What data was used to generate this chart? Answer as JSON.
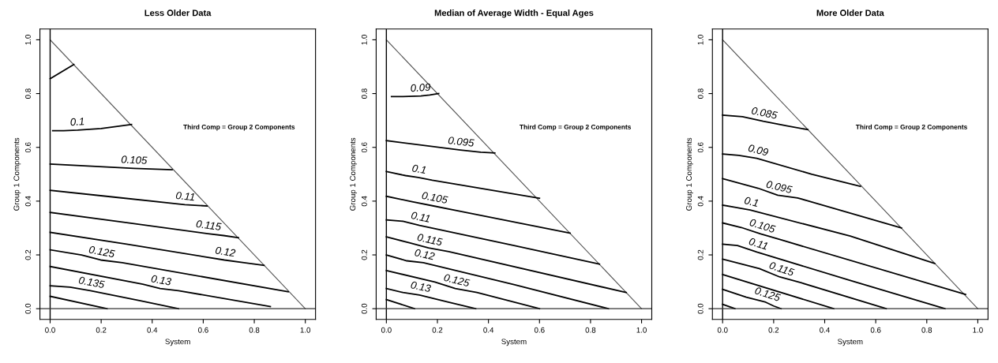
{
  "chart_data": [
    {
      "type": "line",
      "title": "Less Older Data",
      "xlabel": "System",
      "ylabel": "Group 1 Components",
      "annotations": [
        "Third Comp = Group 2 Components"
      ],
      "xlim": [
        -0.04,
        1.04
      ],
      "ylim": [
        -0.04,
        1.04
      ],
      "xticks": [
        {
          "value": 0,
          "label": "0.0"
        },
        {
          "value": 0.2,
          "label": "0.2"
        },
        {
          "value": 0.4,
          "label": "0.4"
        },
        {
          "value": 0.6,
          "label": "0.6"
        },
        {
          "value": 0.8,
          "label": "0.8"
        },
        {
          "value": 1,
          "label": "1.0"
        }
      ],
      "yticks": [
        {
          "value": 0,
          "label": "0.0"
        },
        {
          "value": 0.2,
          "label": "0.2"
        },
        {
          "value": 0.4,
          "label": "0.4"
        },
        {
          "value": 0.6,
          "label": "0.6"
        },
        {
          "value": 0.8,
          "label": "0.8"
        },
        {
          "value": 1,
          "label": "1.0"
        }
      ],
      "grid": false,
      "legend": false,
      "ref_lines": [
        {
          "axis": "x",
          "value": 0,
          "color": "#000000"
        },
        {
          "axis": "y",
          "value": 0,
          "color": "#333333"
        }
      ],
      "series": [
        {
          "color": "#555555",
          "x": [
            0,
            1
          ],
          "values": [
            1,
            0
          ]
        },
        {
          "color": "#000000",
          "x": [
            0,
            0.093
          ],
          "values": [
            0.855,
            0.908
          ]
        },
        {
          "name": "0.1",
          "color": "#000000",
          "x": [
            0.01,
            0.053,
            0.108,
            0.2,
            0.319
          ],
          "values": [
            0.662,
            0.662,
            0.664,
            0.67,
            0.685
          ]
        },
        {
          "name": "0.105",
          "color": "#000000",
          "x": [
            0,
            0.328,
            0.478
          ],
          "values": [
            0.538,
            0.522,
            0.517
          ]
        },
        {
          "name": "0.11",
          "color": "#000000",
          "x": [
            0,
            0.25,
            0.528,
            0.58,
            0.615
          ],
          "values": [
            0.44,
            0.415,
            0.387,
            0.384,
            0.382
          ]
        },
        {
          "name": "0.115",
          "color": "#000000",
          "x": [
            0,
            0.3,
            0.618,
            0.68,
            0.738
          ],
          "values": [
            0.358,
            0.32,
            0.279,
            0.272,
            0.264
          ]
        },
        {
          "name": "0.12",
          "color": "#000000",
          "x": [
            0,
            0.3,
            0.683,
            0.76,
            0.838
          ],
          "values": [
            0.284,
            0.24,
            0.181,
            0.171,
            0.161
          ]
        },
        {
          "name": "0.125",
          "color": "#000000",
          "x": [
            0,
            0.123,
            0.198,
            0.283,
            0.933
          ],
          "values": [
            0.219,
            0.2,
            0.181,
            0.171,
            0.063
          ]
        },
        {
          "name": "0.13",
          "color": "#000000",
          "x": [
            0,
            0.363,
            0.431,
            0.503,
            0.863
          ],
          "values": [
            0.157,
            0.091,
            0.075,
            0.067,
            0.008
          ]
        },
        {
          "name": "0.135",
          "color": "#000000",
          "x": [
            0,
            0.078,
            0.158,
            0.35,
            0.503
          ],
          "values": [
            0.085,
            0.08,
            0.067,
            0.03,
            0
          ]
        },
        {
          "color": "#000000",
          "x": [
            0,
            0.223
          ],
          "values": [
            0.046,
            0
          ]
        }
      ]
    },
    {
      "type": "line",
      "title": "Median of Average Width - Equal Ages",
      "xlabel": "System",
      "ylabel": "Group 1 Components",
      "annotations": [
        "Third Comp = Group 2 Components"
      ],
      "xlim": [
        -0.04,
        1.04
      ],
      "ylim": [
        -0.04,
        1.04
      ],
      "xticks": [
        {
          "value": 0,
          "label": "0.0"
        },
        {
          "value": 0.2,
          "label": "0.2"
        },
        {
          "value": 0.4,
          "label": "0.4"
        },
        {
          "value": 0.6,
          "label": "0.6"
        },
        {
          "value": 0.8,
          "label": "0.8"
        },
        {
          "value": 1,
          "label": "1.0"
        }
      ],
      "yticks": [
        {
          "value": 0,
          "label": "0.0"
        },
        {
          "value": 0.2,
          "label": "0.2"
        },
        {
          "value": 0.4,
          "label": "0.4"
        },
        {
          "value": 0.6,
          "label": "0.6"
        },
        {
          "value": 0.8,
          "label": "0.8"
        },
        {
          "value": 1,
          "label": "1.0"
        }
      ],
      "grid": false,
      "legend": false,
      "ref_lines": [
        {
          "axis": "x",
          "value": 0,
          "color": "#000000"
        },
        {
          "axis": "y",
          "value": 0,
          "color": "#333333"
        }
      ],
      "series": [
        {
          "color": "#555555",
          "x": [
            0,
            1
          ],
          "values": [
            1,
            0
          ]
        },
        {
          "name": "0.09",
          "color": "#000000",
          "x": [
            0.02,
            0.065,
            0.135,
            0.17,
            0.205
          ],
          "values": [
            0.789,
            0.789,
            0.791,
            0.795,
            0.8
          ]
        },
        {
          "name": "0.095",
          "color": "#000000",
          "x": [
            0,
            0.205,
            0.29,
            0.37,
            0.425
          ],
          "values": [
            0.625,
            0.6,
            0.59,
            0.582,
            0.579
          ]
        },
        {
          "name": "0.1",
          "color": "#000000",
          "x": [
            0,
            0.075,
            0.125,
            0.18,
            0.6
          ],
          "values": [
            0.51,
            0.495,
            0.488,
            0.478,
            0.411
          ]
        },
        {
          "name": "0.105",
          "color": "#000000",
          "x": [
            0,
            0.105,
            0.185,
            0.268,
            0.72
          ],
          "values": [
            0.418,
            0.397,
            0.382,
            0.366,
            0.281
          ]
        },
        {
          "name": "0.11",
          "color": "#000000",
          "x": [
            0,
            0.065,
            0.13,
            0.5,
            0.835
          ],
          "values": [
            0.33,
            0.325,
            0.31,
            0.235,
            0.166
          ]
        },
        {
          "name": "0.115",
          "color": "#000000",
          "x": [
            0,
            0.09,
            0.165,
            0.245,
            0.94
          ],
          "values": [
            0.267,
            0.245,
            0.226,
            0.212,
            0.06
          ]
        },
        {
          "name": "0.12",
          "color": "#000000",
          "x": [
            0,
            0.08,
            0.145,
            0.5,
            0.87
          ],
          "values": [
            0.2,
            0.178,
            0.171,
            0.09,
            0
          ]
        },
        {
          "name": "0.125",
          "color": "#000000",
          "x": [
            0,
            0.19,
            0.27,
            0.355,
            0.6
          ],
          "values": [
            0.142,
            0.099,
            0.075,
            0.06,
            0
          ]
        },
        {
          "name": "0.13",
          "color": "#000000",
          "x": [
            0,
            0.065,
            0.13,
            0.24,
            0.35
          ],
          "values": [
            0.075,
            0.06,
            0.051,
            0.025,
            0
          ]
        },
        {
          "color": "#000000",
          "x": [
            0,
            0.11
          ],
          "values": [
            0.034,
            0
          ]
        }
      ]
    },
    {
      "type": "line",
      "title": "More Older Data",
      "xlabel": "System",
      "ylabel": "Group 1 Components",
      "annotations": [
        "Third Comp = Group 2 Components"
      ],
      "xlim": [
        -0.04,
        1.04
      ],
      "ylim": [
        -0.04,
        1.04
      ],
      "xticks": [
        {
          "value": 0,
          "label": "0.0"
        },
        {
          "value": 0.2,
          "label": "0.2"
        },
        {
          "value": 0.4,
          "label": "0.4"
        },
        {
          "value": 0.6,
          "label": "0.6"
        },
        {
          "value": 0.8,
          "label": "0.8"
        },
        {
          "value": 1,
          "label": "1.0"
        }
      ],
      "yticks": [
        {
          "value": 0,
          "label": "0.0"
        },
        {
          "value": 0.2,
          "label": "0.2"
        },
        {
          "value": 0.4,
          "label": "0.4"
        },
        {
          "value": 0.6,
          "label": "0.6"
        },
        {
          "value": 0.8,
          "label": "0.8"
        },
        {
          "value": 1,
          "label": "1.0"
        }
      ],
      "grid": false,
      "legend": false,
      "ref_lines": [
        {
          "axis": "x",
          "value": 0,
          "color": "#000000"
        },
        {
          "axis": "y",
          "value": 0,
          "color": "#333333"
        }
      ],
      "series": [
        {
          "color": "#555555",
          "x": [
            0,
            1
          ],
          "values": [
            1,
            0
          ]
        },
        {
          "name": "0.085",
          "color": "#000000",
          "x": [
            0,
            0.078,
            0.159,
            0.25,
            0.334
          ],
          "values": [
            0.72,
            0.714,
            0.697,
            0.68,
            0.666
          ]
        },
        {
          "name": "0.09",
          "color": "#000000",
          "x": [
            0,
            0.063,
            0.134,
            0.35,
            0.54
          ],
          "values": [
            0.575,
            0.57,
            0.559,
            0.5,
            0.455
          ]
        },
        {
          "name": "0.095",
          "color": "#000000",
          "x": [
            0,
            0.139,
            0.216,
            0.294,
            0.701
          ],
          "values": [
            0.484,
            0.448,
            0.422,
            0.412,
            0.3
          ]
        },
        {
          "name": "0.1",
          "color": "#000000",
          "x": [
            0,
            0.048,
            0.108,
            0.5,
            0.831
          ],
          "values": [
            0.385,
            0.377,
            0.367,
            0.27,
            0.168
          ]
        },
        {
          "name": "0.105",
          "color": "#000000",
          "x": [
            0,
            0.073,
            0.149,
            0.229,
            0.952
          ],
          "values": [
            0.319,
            0.302,
            0.278,
            0.256,
            0.053
          ]
        },
        {
          "name": "0.11",
          "color": "#000000",
          "x": [
            0,
            0.058,
            0.134,
            0.5,
            0.871
          ],
          "values": [
            0.24,
            0.235,
            0.211,
            0.105,
            0
          ]
        },
        {
          "name": "0.115",
          "color": "#000000",
          "x": [
            0,
            0.144,
            0.224,
            0.309,
            0.641
          ],
          "values": [
            0.184,
            0.149,
            0.118,
            0.096,
            0
          ]
        },
        {
          "color": "#000000",
          "x": [
            0,
            0.435
          ],
          "values": [
            0.127,
            0
          ]
        },
        {
          "name": "0.125",
          "color": "#000000",
          "x": [
            0,
            0.093,
            0.169,
            0.2,
            0.229
          ],
          "values": [
            0.072,
            0.043,
            0.024,
            0.01,
            0
          ]
        },
        {
          "color": "#000000",
          "x": [
            0,
            0.048
          ],
          "values": [
            0.016,
            0
          ]
        }
      ]
    }
  ]
}
